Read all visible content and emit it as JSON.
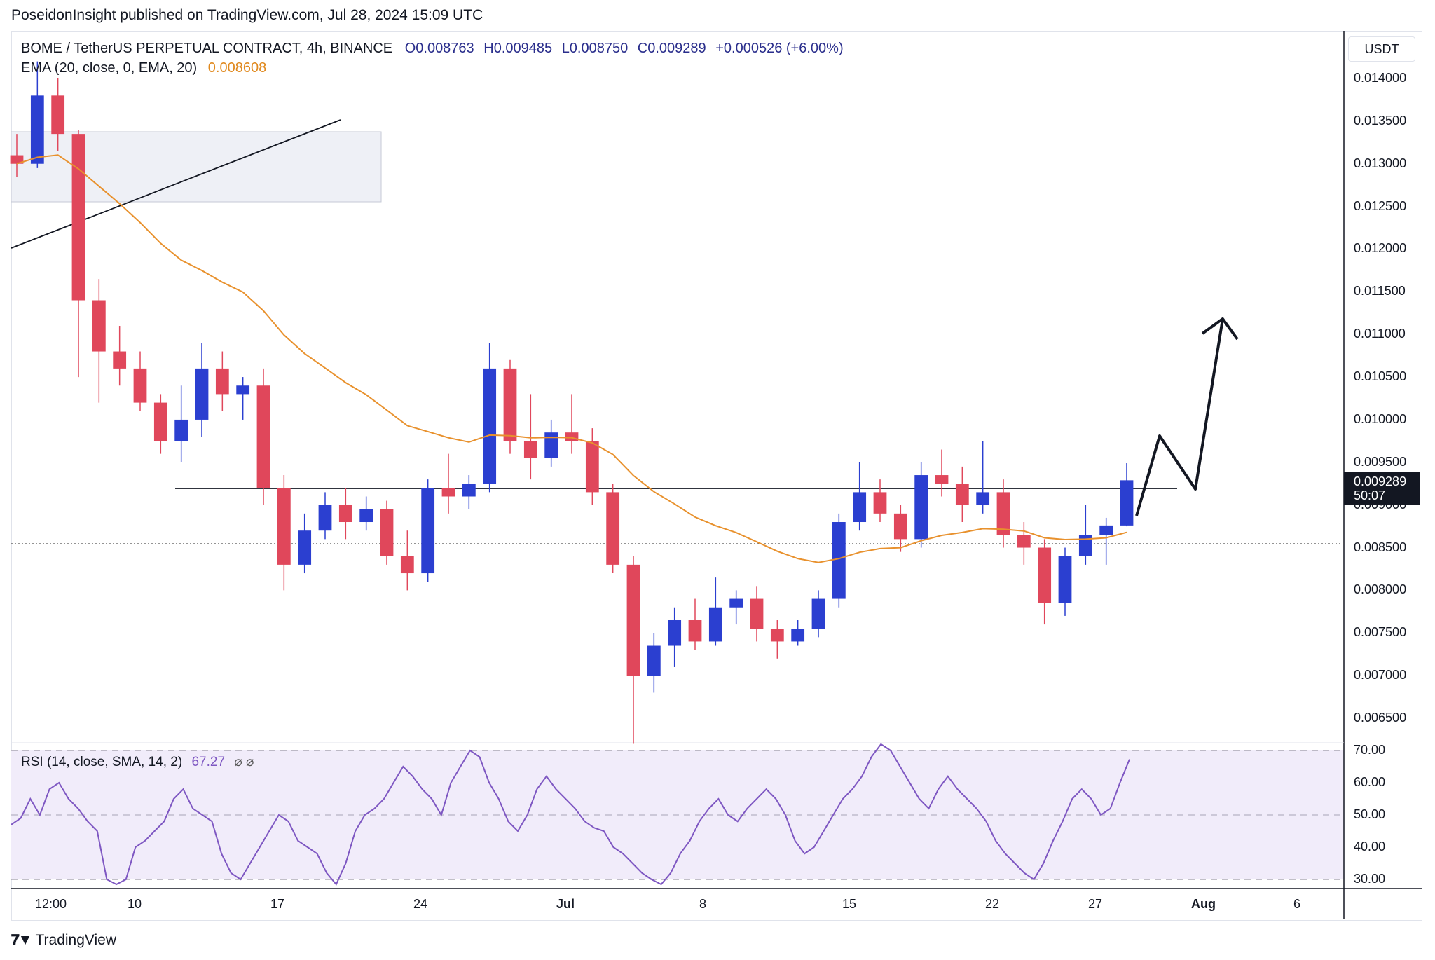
{
  "header": {
    "attribution": "PoseidonInsight published on TradingView.com, Jul 28, 2024 15:09 UTC"
  },
  "legend": {
    "symbol": "BOME / TetherUS PERPETUAL CONTRACT, 4h, BINANCE",
    "open": "O0.008763",
    "high": "H0.009485",
    "low": "L0.008750",
    "close": "C0.009289",
    "change": "+0.000526 (+6.00%)"
  },
  "ema": {
    "label": "EMA (20, close, 0, EMA, 20)",
    "value": "0.008608"
  },
  "rsi": {
    "label": "RSI (14, close, SMA, 14, 2)",
    "value": "67.27",
    "icons": "⌀ ⌀"
  },
  "price_axis": {
    "currency": "USDT",
    "ticks": [
      "0.014000",
      "0.013500",
      "0.013000",
      "0.012500",
      "0.012000",
      "0.011500",
      "0.011000",
      "0.010500",
      "0.010000",
      "0.009500",
      "0.009000",
      "0.008500",
      "0.008000",
      "0.007500",
      "0.007000",
      "0.006500"
    ],
    "current_price": "0.009289",
    "countdown": "50:07"
  },
  "rsi_axis": {
    "ticks": [
      "70.00",
      "60.00",
      "50.00",
      "40.00",
      "30.00"
    ]
  },
  "time_axis": {
    "ticks": [
      "12:00",
      "10",
      "17",
      "24",
      "Jul",
      "8",
      "15",
      "22",
      "27",
      "Aug",
      "6"
    ]
  },
  "brand": {
    "name": "TradingView"
  },
  "colors": {
    "up": "#2b3fd0",
    "down": "#e0475b",
    "ema": "#e8912d",
    "rsi": "#7e57c2",
    "rsi_band": "#ede7f6"
  },
  "chart_data": {
    "type": "candlestick",
    "timeframe": "4h",
    "x_start": "2024-06-05 12:00",
    "y_range": [
      0.0063,
      0.0142
    ],
    "candles": [
      {
        "t": "06-06",
        "o": 0.0131,
        "h": 0.01335,
        "l": 0.01285,
        "c": 0.013
      },
      {
        "t": "06-07",
        "o": 0.013,
        "h": 0.0142,
        "l": 0.01295,
        "c": 0.0138
      },
      {
        "t": "06-08",
        "o": 0.0138,
        "h": 0.014,
        "l": 0.01315,
        "c": 0.01335
      },
      {
        "t": "06-08",
        "o": 0.01335,
        "h": 0.0134,
        "l": 0.0105,
        "c": 0.0114
      },
      {
        "t": "06-09",
        "o": 0.0114,
        "h": 0.01165,
        "l": 0.0102,
        "c": 0.0108
      },
      {
        "t": "06-10",
        "o": 0.0108,
        "h": 0.0111,
        "l": 0.0104,
        "c": 0.0106
      },
      {
        "t": "06-11",
        "o": 0.0106,
        "h": 0.0108,
        "l": 0.0101,
        "c": 0.0102
      },
      {
        "t": "06-12",
        "o": 0.0102,
        "h": 0.0103,
        "l": 0.0096,
        "c": 0.00975
      },
      {
        "t": "06-13",
        "o": 0.00975,
        "h": 0.0104,
        "l": 0.0095,
        "c": 0.01
      },
      {
        "t": "06-14",
        "o": 0.01,
        "h": 0.0109,
        "l": 0.0098,
        "c": 0.0106
      },
      {
        "t": "06-15",
        "o": 0.0106,
        "h": 0.0108,
        "l": 0.0101,
        "c": 0.0103
      },
      {
        "t": "06-16",
        "o": 0.0103,
        "h": 0.0105,
        "l": 0.01,
        "c": 0.0104
      },
      {
        "t": "06-17",
        "o": 0.0104,
        "h": 0.0106,
        "l": 0.009,
        "c": 0.0092
      },
      {
        "t": "06-18",
        "o": 0.0092,
        "h": 0.00935,
        "l": 0.008,
        "c": 0.0083
      },
      {
        "t": "06-19",
        "o": 0.0083,
        "h": 0.0089,
        "l": 0.0082,
        "c": 0.0087
      },
      {
        "t": "06-20",
        "o": 0.0087,
        "h": 0.00915,
        "l": 0.0086,
        "c": 0.009
      },
      {
        "t": "06-21",
        "o": 0.009,
        "h": 0.0092,
        "l": 0.0086,
        "c": 0.0088
      },
      {
        "t": "06-22",
        "o": 0.0088,
        "h": 0.0091,
        "l": 0.0087,
        "c": 0.00895
      },
      {
        "t": "06-23",
        "o": 0.00895,
        "h": 0.00905,
        "l": 0.0083,
        "c": 0.0084
      },
      {
        "t": "06-24",
        "o": 0.0084,
        "h": 0.0087,
        "l": 0.008,
        "c": 0.0082
      },
      {
        "t": "06-25",
        "o": 0.0082,
        "h": 0.0093,
        "l": 0.0081,
        "c": 0.0092
      },
      {
        "t": "06-26",
        "o": 0.0092,
        "h": 0.0096,
        "l": 0.0089,
        "c": 0.0091
      },
      {
        "t": "06-27",
        "o": 0.0091,
        "h": 0.00935,
        "l": 0.00895,
        "c": 0.00925
      },
      {
        "t": "06-28",
        "o": 0.00925,
        "h": 0.0109,
        "l": 0.00915,
        "c": 0.0106
      },
      {
        "t": "06-29",
        "o": 0.0106,
        "h": 0.0107,
        "l": 0.0096,
        "c": 0.00975
      },
      {
        "t": "06-30",
        "o": 0.00975,
        "h": 0.0103,
        "l": 0.0093,
        "c": 0.00955
      },
      {
        "t": "07-01",
        "o": 0.00955,
        "h": 0.01,
        "l": 0.00945,
        "c": 0.00985
      },
      {
        "t": "07-02",
        "o": 0.00985,
        "h": 0.0103,
        "l": 0.0096,
        "c": 0.00975
      },
      {
        "t": "07-03",
        "o": 0.00975,
        "h": 0.0099,
        "l": 0.009,
        "c": 0.00915
      },
      {
        "t": "07-04",
        "o": 0.00915,
        "h": 0.00925,
        "l": 0.0082,
        "c": 0.0083
      },
      {
        "t": "07-05",
        "o": 0.0083,
        "h": 0.0084,
        "l": 0.0062,
        "c": 0.007
      },
      {
        "t": "07-06",
        "o": 0.007,
        "h": 0.0075,
        "l": 0.0068,
        "c": 0.00735
      },
      {
        "t": "07-07",
        "o": 0.00735,
        "h": 0.0078,
        "l": 0.0071,
        "c": 0.00765
      },
      {
        "t": "07-08",
        "o": 0.00765,
        "h": 0.0079,
        "l": 0.0073,
        "c": 0.0074
      },
      {
        "t": "07-09",
        "o": 0.0074,
        "h": 0.00815,
        "l": 0.00735,
        "c": 0.0078
      },
      {
        "t": "07-10",
        "o": 0.0078,
        "h": 0.008,
        "l": 0.0076,
        "c": 0.0079
      },
      {
        "t": "07-11",
        "o": 0.0079,
        "h": 0.00805,
        "l": 0.0074,
        "c": 0.00755
      },
      {
        "t": "07-12",
        "o": 0.00755,
        "h": 0.00765,
        "l": 0.0072,
        "c": 0.0074
      },
      {
        "t": "07-13",
        "o": 0.0074,
        "h": 0.00765,
        "l": 0.00735,
        "c": 0.00755
      },
      {
        "t": "07-14",
        "o": 0.00755,
        "h": 0.008,
        "l": 0.00745,
        "c": 0.0079
      },
      {
        "t": "07-15",
        "o": 0.0079,
        "h": 0.0089,
        "l": 0.0078,
        "c": 0.0088
      },
      {
        "t": "07-16",
        "o": 0.0088,
        "h": 0.0095,
        "l": 0.0087,
        "c": 0.00915
      },
      {
        "t": "07-17",
        "o": 0.00915,
        "h": 0.0093,
        "l": 0.0088,
        "c": 0.0089
      },
      {
        "t": "07-18",
        "o": 0.0089,
        "h": 0.009,
        "l": 0.00845,
        "c": 0.0086
      },
      {
        "t": "07-19",
        "o": 0.0086,
        "h": 0.0095,
        "l": 0.0085,
        "c": 0.00935
      },
      {
        "t": "07-20",
        "o": 0.00935,
        "h": 0.00965,
        "l": 0.0091,
        "c": 0.00925
      },
      {
        "t": "07-21",
        "o": 0.00925,
        "h": 0.00945,
        "l": 0.0088,
        "c": 0.009
      },
      {
        "t": "07-22",
        "o": 0.009,
        "h": 0.00975,
        "l": 0.0089,
        "c": 0.00915
      },
      {
        "t": "07-23",
        "o": 0.00915,
        "h": 0.0093,
        "l": 0.0085,
        "c": 0.00865
      },
      {
        "t": "07-24",
        "o": 0.00865,
        "h": 0.0088,
        "l": 0.0083,
        "c": 0.0085
      },
      {
        "t": "07-25",
        "o": 0.0085,
        "h": 0.0086,
        "l": 0.0076,
        "c": 0.00785
      },
      {
        "t": "07-26",
        "o": 0.00785,
        "h": 0.0085,
        "l": 0.0077,
        "c": 0.0084
      },
      {
        "t": "07-27",
        "o": 0.0084,
        "h": 0.009,
        "l": 0.0083,
        "c": 0.00865
      },
      {
        "t": "07-28",
        "o": 0.00865,
        "h": 0.00885,
        "l": 0.0083,
        "c": 0.00876
      },
      {
        "t": "07-28",
        "o": 0.00876,
        "h": 0.00949,
        "l": 0.00875,
        "c": 0.00929
      }
    ],
    "ema20_last": 0.008608,
    "support_level": 0.00918,
    "rsi_last": 67.27,
    "rsi_levels": [
      70,
      50,
      30
    ],
    "rsi_values": [
      47,
      49,
      55,
      50,
      58,
      60,
      55,
      52,
      48,
      45,
      30,
      28,
      30,
      40,
      42,
      45,
      48,
      55,
      58,
      52,
      50,
      48,
      38,
      32,
      30,
      35,
      40,
      45,
      50,
      48,
      42,
      40,
      38,
      32,
      28,
      35,
      45,
      50,
      52,
      55,
      60,
      65,
      62,
      58,
      55,
      50,
      60,
      65,
      70,
      68,
      60,
      55,
      48,
      45,
      50,
      58,
      62,
      58,
      55,
      52,
      48,
      46,
      45,
      40,
      38,
      35,
      32,
      30,
      28,
      32,
      38,
      42,
      48,
      52,
      55,
      50,
      48,
      52,
      55,
      58,
      55,
      50,
      42,
      38,
      40,
      45,
      50,
      55,
      58,
      62,
      68,
      72,
      70,
      65,
      60,
      55,
      52,
      58,
      62,
      58,
      55,
      52,
      48,
      42,
      38,
      35,
      32,
      30,
      35,
      42,
      48,
      55,
      58,
      55,
      50,
      52,
      60,
      67.27
    ]
  }
}
